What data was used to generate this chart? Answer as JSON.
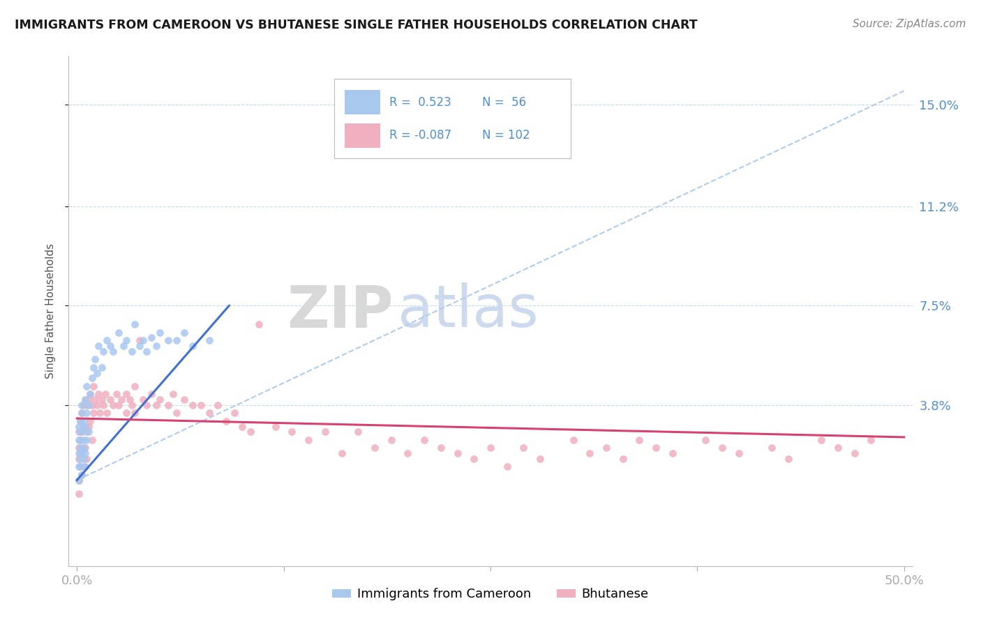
{
  "title": "IMMIGRANTS FROM CAMEROON VS BHUTANESE SINGLE FATHER HOUSEHOLDS CORRELATION CHART",
  "source": "Source: ZipAtlas.com",
  "ylabel": "Single Father Households",
  "xlim": [
    -0.005,
    0.505
  ],
  "ylim": [
    -0.022,
    0.168
  ],
  "yticks": [
    0.038,
    0.075,
    0.112,
    0.15
  ],
  "ytick_labels": [
    "3.8%",
    "7.5%",
    "11.2%",
    "15.0%"
  ],
  "xticks": [
    0.0,
    0.125,
    0.25,
    0.375,
    0.5
  ],
  "xtick_labels": [
    "0.0%",
    "",
    "",
    "",
    "50.0%"
  ],
  "legend1_label": "Immigrants from Cameroon",
  "legend2_label": "Bhutanese",
  "R1": "0.523",
  "N1": "56",
  "R2": "-0.087",
  "N2": "102",
  "color1": "#a8c8f0",
  "color2": "#f0b0c0",
  "line1_color": "#4070d0",
  "line2_color": "#d84070",
  "dashed_line_color": "#b0cce8",
  "background_color": "#ffffff",
  "grid_color": "#c8d8ec",
  "title_color": "#1a1a1a",
  "watermark_color": "#cddaee",
  "right_label_color": "#5090d0",
  "cam_x": [
    0.001,
    0.001,
    0.001,
    0.001,
    0.001,
    0.002,
    0.002,
    0.002,
    0.002,
    0.002,
    0.002,
    0.003,
    0.003,
    0.003,
    0.003,
    0.003,
    0.004,
    0.004,
    0.004,
    0.004,
    0.005,
    0.005,
    0.005,
    0.005,
    0.006,
    0.006,
    0.006,
    0.007,
    0.007,
    0.008,
    0.009,
    0.01,
    0.011,
    0.012,
    0.013,
    0.015,
    0.016,
    0.018,
    0.02,
    0.022,
    0.025,
    0.028,
    0.03,
    0.033,
    0.035,
    0.038,
    0.04,
    0.042,
    0.045,
    0.048,
    0.05,
    0.055,
    0.06,
    0.065,
    0.07,
    0.08
  ],
  "cam_y": [
    0.02,
    0.025,
    0.03,
    0.015,
    0.01,
    0.028,
    0.022,
    0.018,
    0.032,
    0.025,
    0.015,
    0.035,
    0.028,
    0.02,
    0.012,
    0.038,
    0.032,
    0.025,
    0.018,
    0.022,
    0.04,
    0.03,
    0.02,
    0.015,
    0.045,
    0.035,
    0.025,
    0.038,
    0.028,
    0.042,
    0.048,
    0.052,
    0.055,
    0.05,
    0.06,
    0.052,
    0.058,
    0.062,
    0.06,
    0.058,
    0.065,
    0.06,
    0.062,
    0.058,
    0.068,
    0.06,
    0.062,
    0.058,
    0.063,
    0.06,
    0.065,
    0.062,
    0.062,
    0.065,
    0.06,
    0.062
  ],
  "bhu_x": [
    0.001,
    0.001,
    0.001,
    0.001,
    0.001,
    0.002,
    0.002,
    0.002,
    0.002,
    0.003,
    0.003,
    0.003,
    0.003,
    0.004,
    0.004,
    0.004,
    0.004,
    0.005,
    0.005,
    0.005,
    0.006,
    0.006,
    0.006,
    0.007,
    0.007,
    0.008,
    0.008,
    0.009,
    0.009,
    0.01,
    0.01,
    0.011,
    0.012,
    0.013,
    0.014,
    0.015,
    0.016,
    0.017,
    0.018,
    0.02,
    0.022,
    0.024,
    0.025,
    0.027,
    0.03,
    0.03,
    0.032,
    0.033,
    0.035,
    0.035,
    0.038,
    0.04,
    0.042,
    0.045,
    0.048,
    0.05,
    0.055,
    0.058,
    0.06,
    0.065,
    0.07,
    0.075,
    0.08,
    0.085,
    0.09,
    0.095,
    0.1,
    0.105,
    0.11,
    0.12,
    0.13,
    0.14,
    0.15,
    0.16,
    0.17,
    0.18,
    0.19,
    0.2,
    0.21,
    0.22,
    0.23,
    0.24,
    0.25,
    0.26,
    0.27,
    0.28,
    0.3,
    0.31,
    0.32,
    0.33,
    0.34,
    0.35,
    0.36,
    0.38,
    0.39,
    0.4,
    0.42,
    0.43,
    0.45,
    0.46,
    0.47,
    0.48
  ],
  "bhu_y": [
    0.028,
    0.022,
    0.018,
    0.01,
    0.005,
    0.032,
    0.025,
    0.02,
    0.015,
    0.035,
    0.028,
    0.02,
    0.012,
    0.038,
    0.03,
    0.022,
    0.015,
    0.04,
    0.03,
    0.022,
    0.038,
    0.028,
    0.018,
    0.04,
    0.03,
    0.042,
    0.032,
    0.038,
    0.025,
    0.045,
    0.035,
    0.04,
    0.038,
    0.042,
    0.035,
    0.04,
    0.038,
    0.042,
    0.035,
    0.04,
    0.038,
    0.042,
    0.038,
    0.04,
    0.042,
    0.035,
    0.04,
    0.038,
    0.045,
    0.035,
    0.062,
    0.04,
    0.038,
    0.042,
    0.038,
    0.04,
    0.038,
    0.042,
    0.035,
    0.04,
    0.038,
    0.038,
    0.035,
    0.038,
    0.032,
    0.035,
    0.03,
    0.028,
    0.068,
    0.03,
    0.028,
    0.025,
    0.028,
    0.02,
    0.028,
    0.022,
    0.025,
    0.02,
    0.025,
    0.022,
    0.02,
    0.018,
    0.022,
    0.015,
    0.022,
    0.018,
    0.025,
    0.02,
    0.022,
    0.018,
    0.025,
    0.022,
    0.02,
    0.025,
    0.022,
    0.02,
    0.022,
    0.018,
    0.025,
    0.022,
    0.02,
    0.025
  ],
  "line1_x0": 0.0,
  "line1_y0": 0.01,
  "line1_x1": 0.092,
  "line1_y1": 0.075,
  "line1_dash_x0": 0.0,
  "line1_dash_y0": 0.01,
  "line1_dash_x1": 0.5,
  "line1_dash_y1": 0.155,
  "line2_x0": 0.0,
  "line2_y0": 0.033,
  "line2_x1": 0.5,
  "line2_y1": 0.026
}
